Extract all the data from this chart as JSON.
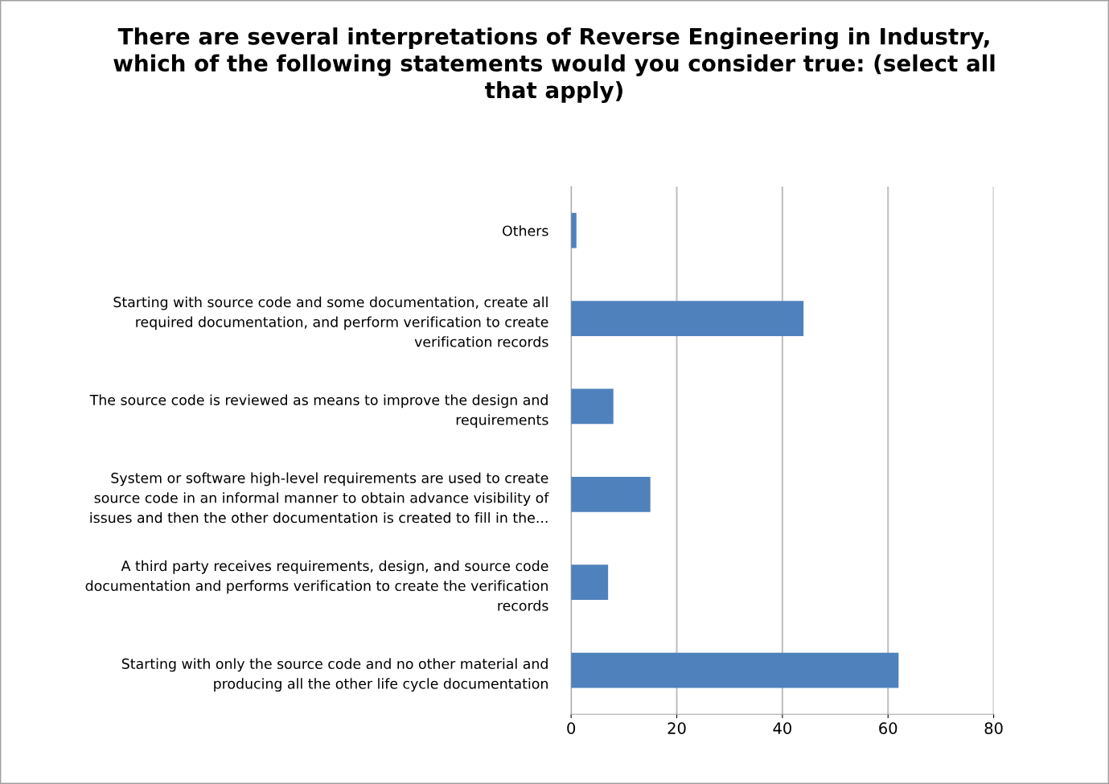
{
  "chart_data": {
    "type": "bar",
    "orientation": "horizontal",
    "title": "There are several interpretations of Reverse Engineering in Industry,\nwhich of the following statements would you consider true: (select all\nthat apply)",
    "categories": [
      "Others",
      "Starting with source code and some documentation, create all\nrequired documentation, and perform verification to create\nverification records",
      "The source code is reviewed as means to improve the design and\nrequirements",
      "System or software high-level requirements are used to create\nsource code in an informal manner to obtain advance visibility of\nissues and then the other documentation is created to fill in the...",
      "A third party receives requirements, design, and source code\ndocumentation and performs verification to create the verification\nrecords",
      "Starting with only the source code and no other material and\nproducing all the other life cycle documentation"
    ],
    "values": [
      1,
      44,
      8,
      15,
      7,
      62
    ],
    "color": "#4f81bd",
    "xlim": [
      0,
      80
    ],
    "xticks": [
      0,
      20,
      40,
      60,
      80
    ],
    "grid": "x",
    "legend": false
  }
}
